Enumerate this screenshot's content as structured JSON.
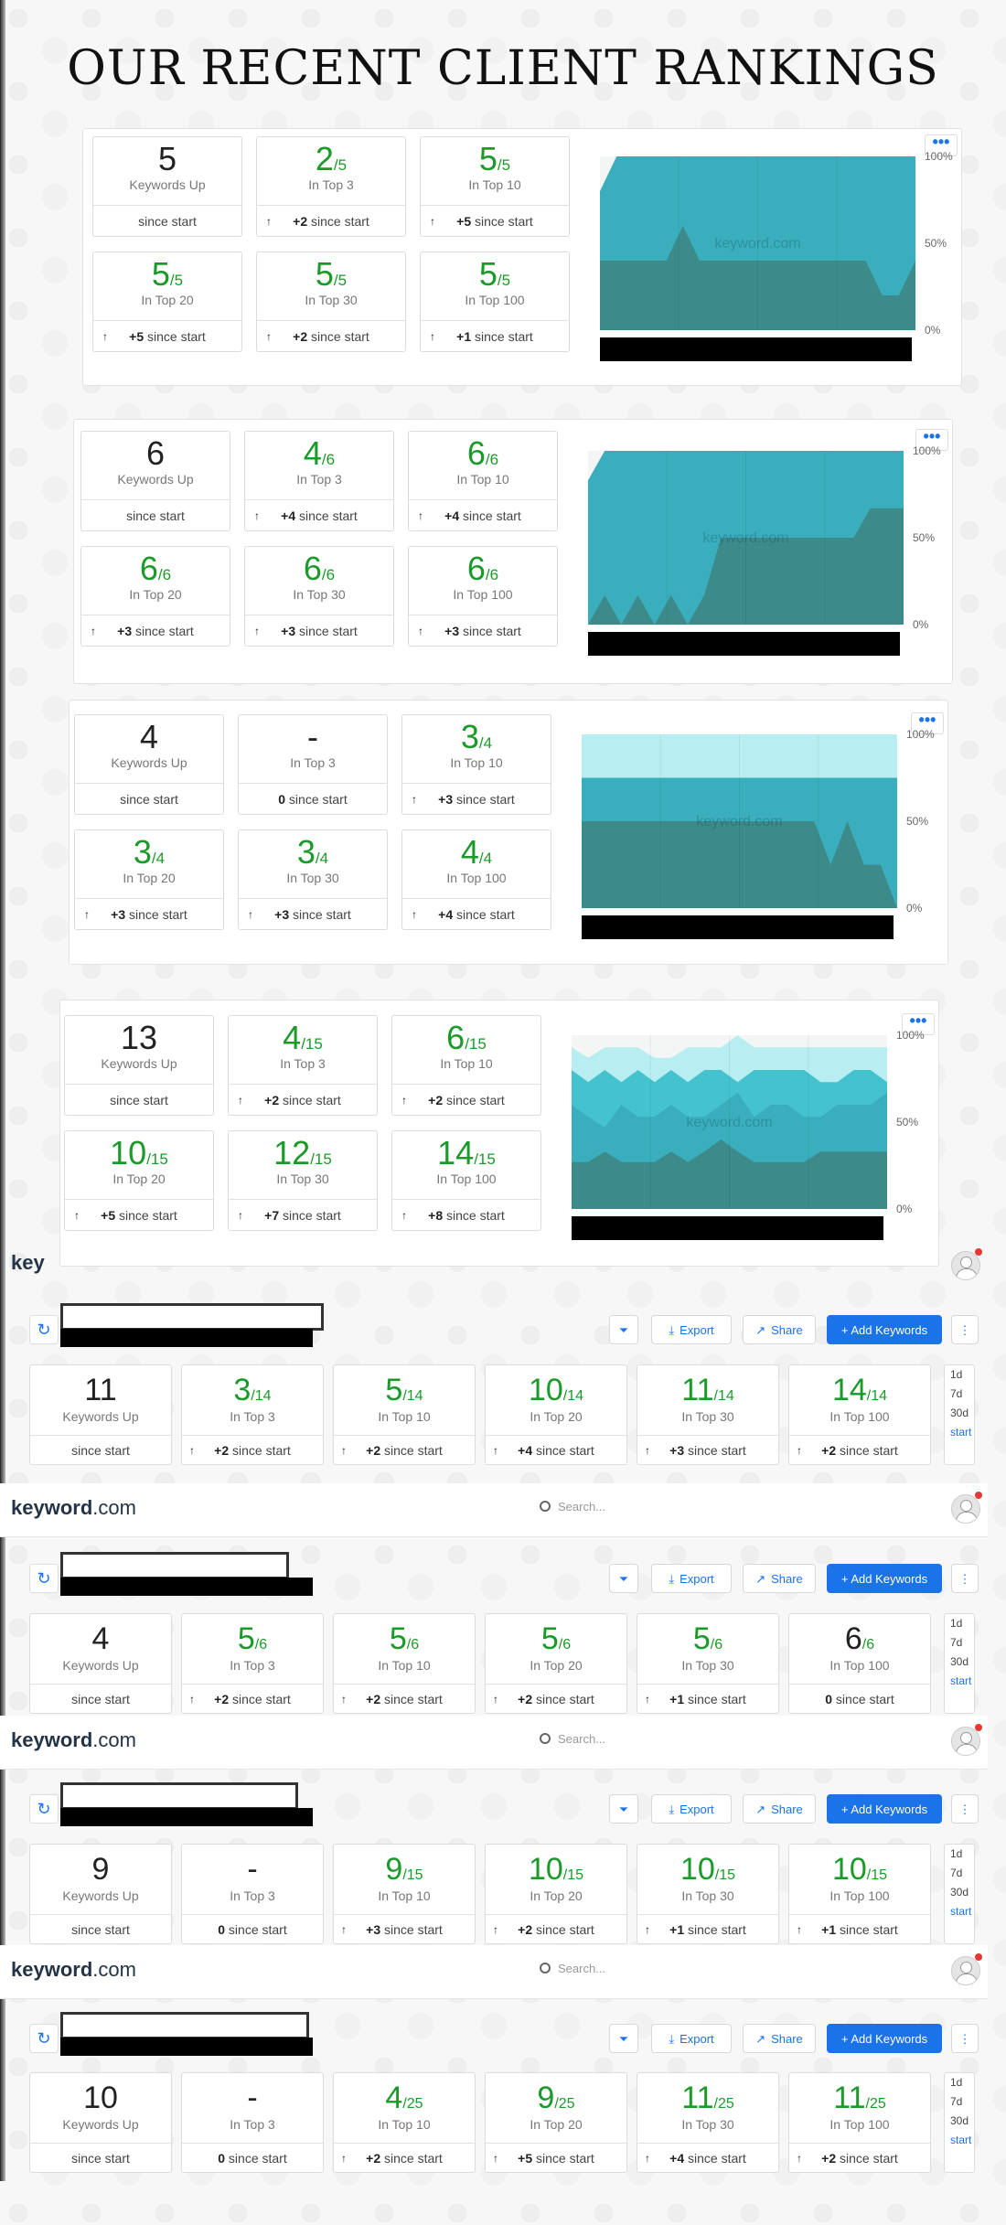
{
  "page_title": "OUR RECENT CLIENT RANKINGS",
  "watermark": "keyword.com",
  "menu_dots": "•••",
  "colors": {
    "green": "#1b9a2a",
    "chart_light": "#b8eef2",
    "chart_mid": "#44c3cf",
    "chart_teal": "#3aaebd",
    "chart_dark": "#3c8a8a",
    "blue": "#1a73e8"
  },
  "panels": [
    {
      "cards": [
        {
          "num": "5",
          "den": "",
          "green": false,
          "label": "Keywords Up",
          "arrow": false,
          "delta": "",
          "since": "since start"
        },
        {
          "num": "2",
          "den": "/5",
          "green": true,
          "label": "In Top 3",
          "arrow": true,
          "delta": "+2",
          "since": " since start"
        },
        {
          "num": "5",
          "den": "/5",
          "green": true,
          "label": "In Top 10",
          "arrow": true,
          "delta": "+5",
          "since": " since start"
        },
        {
          "num": "5",
          "den": "/5",
          "green": true,
          "label": "In Top 20",
          "arrow": true,
          "delta": "+5",
          "since": " since start"
        },
        {
          "num": "5",
          "den": "/5",
          "green": true,
          "label": "In Top 30",
          "arrow": true,
          "delta": "+2",
          "since": " since start"
        },
        {
          "num": "5",
          "den": "/5",
          "green": true,
          "label": "In Top 100",
          "arrow": true,
          "delta": "+1",
          "since": " since start"
        }
      ],
      "chart": {
        "type": "area",
        "y_ticks": [
          "100%",
          "50%",
          "0%"
        ],
        "layers": [
          {
            "color": "#3aaebd",
            "values": [
              80,
              100,
              100,
              100,
              100,
              100,
              100,
              100,
              100,
              100,
              100,
              100,
              100,
              100,
              100,
              100,
              100,
              100,
              100,
              100
            ]
          },
          {
            "color": "#3c8a8a",
            "values": [
              40,
              40,
              40,
              40,
              40,
              60,
              40,
              40,
              40,
              40,
              40,
              40,
              40,
              40,
              40,
              40,
              40,
              20,
              20,
              40
            ]
          }
        ]
      }
    },
    {
      "cards": [
        {
          "num": "6",
          "den": "",
          "green": false,
          "label": "Keywords Up",
          "arrow": false,
          "delta": "",
          "since": "since start"
        },
        {
          "num": "4",
          "den": "/6",
          "green": true,
          "label": "In Top 3",
          "arrow": true,
          "delta": "+4",
          "since": " since start"
        },
        {
          "num": "6",
          "den": "/6",
          "green": true,
          "label": "In Top 10",
          "arrow": true,
          "delta": "+4",
          "since": " since start"
        },
        {
          "num": "6",
          "den": "/6",
          "green": true,
          "label": "In Top 20",
          "arrow": true,
          "delta": "+3",
          "since": " since start"
        },
        {
          "num": "6",
          "den": "/6",
          "green": true,
          "label": "In Top 30",
          "arrow": true,
          "delta": "+3",
          "since": " since start"
        },
        {
          "num": "6",
          "den": "/6",
          "green": true,
          "label": "In Top 100",
          "arrow": true,
          "delta": "+3",
          "since": " since start"
        }
      ],
      "chart": {
        "type": "area",
        "y_ticks": [
          "100%",
          "50%",
          "0%"
        ],
        "layers": [
          {
            "color": "#3aaebd",
            "values": [
              83,
              100,
              100,
              100,
              100,
              100,
              100,
              100,
              100,
              100,
              100,
              100,
              100,
              100,
              100,
              100,
              100,
              100,
              100,
              100
            ]
          },
          {
            "color": "#3c8a8a",
            "values": [
              0,
              17,
              0,
              17,
              0,
              17,
              0,
              17,
              50,
              50,
              50,
              50,
              50,
              50,
              50,
              50,
              50,
              67,
              67,
              67
            ]
          }
        ]
      }
    },
    {
      "cards": [
        {
          "num": "4",
          "den": "",
          "green": false,
          "label": "Keywords Up",
          "arrow": false,
          "delta": "",
          "since": "since start"
        },
        {
          "num": "-",
          "den": "",
          "green": false,
          "label": "In Top 3",
          "arrow": false,
          "delta": "0",
          "since": " since start"
        },
        {
          "num": "3",
          "den": "/4",
          "green": true,
          "label": "In Top 10",
          "arrow": true,
          "delta": "+3",
          "since": " since start"
        },
        {
          "num": "3",
          "den": "/4",
          "green": true,
          "label": "In Top 20",
          "arrow": true,
          "delta": "+3",
          "since": " since start"
        },
        {
          "num": "3",
          "den": "/4",
          "green": true,
          "label": "In Top 30",
          "arrow": true,
          "delta": "+3",
          "since": " since start"
        },
        {
          "num": "4",
          "den": "/4",
          "green": true,
          "label": "In Top 100",
          "arrow": true,
          "delta": "+4",
          "since": " since start"
        }
      ],
      "chart": {
        "type": "area",
        "y_ticks": [
          "100%",
          "50%",
          "0%"
        ],
        "layers": [
          {
            "color": "#b8eef2",
            "values": [
              100,
              100,
              100,
              100,
              100,
              100,
              100,
              100,
              100,
              100,
              100,
              100,
              100,
              100,
              100,
              100,
              100,
              100,
              100,
              100
            ]
          },
          {
            "color": "#3aaebd",
            "values": [
              75,
              75,
              75,
              75,
              75,
              75,
              75,
              75,
              75,
              75,
              75,
              75,
              75,
              75,
              75,
              75,
              75,
              75,
              75,
              75
            ]
          },
          {
            "color": "#3c8a8a",
            "values": [
              50,
              50,
              50,
              50,
              50,
              50,
              50,
              50,
              50,
              50,
              50,
              50,
              50,
              50,
              50,
              25,
              50,
              25,
              25,
              0
            ]
          }
        ]
      }
    },
    {
      "cards": [
        {
          "num": "13",
          "den": "",
          "green": false,
          "label": "Keywords Up",
          "arrow": false,
          "delta": "",
          "since": "since start"
        },
        {
          "num": "4",
          "den": "/15",
          "green": true,
          "label": "In Top 3",
          "arrow": true,
          "delta": "+2",
          "since": " since start"
        },
        {
          "num": "6",
          "den": "/15",
          "green": true,
          "label": "In Top 10",
          "arrow": true,
          "delta": "+2",
          "since": " since start"
        },
        {
          "num": "10",
          "den": "/15",
          "green": true,
          "label": "In Top 20",
          "arrow": true,
          "delta": "+5",
          "since": " since start"
        },
        {
          "num": "12",
          "den": "/15",
          "green": true,
          "label": "In Top 30",
          "arrow": true,
          "delta": "+7",
          "since": " since start"
        },
        {
          "num": "14",
          "den": "/15",
          "green": true,
          "label": "In Top 100",
          "arrow": true,
          "delta": "+8",
          "since": " since start"
        }
      ],
      "chart": {
        "type": "area",
        "y_ticks": [
          "100%",
          "50%",
          "0%"
        ],
        "layers": [
          {
            "color": "#b8eef2",
            "values": [
              93,
              87,
              93,
              93,
              93,
              87,
              87,
              93,
              93,
              93,
              100,
              93,
              93,
              93,
              93,
              93,
              93,
              93,
              93,
              93
            ]
          },
          {
            "color": "#44c3cf",
            "values": [
              80,
              73,
              80,
              73,
              80,
              73,
              80,
              73,
              80,
              80,
              73,
              80,
              80,
              80,
              80,
              73,
              73,
              80,
              80,
              73
            ]
          },
          {
            "color": "#3aaebd",
            "values": [
              60,
              53,
              47,
              60,
              53,
              53,
              60,
              53,
              53,
              60,
              67,
              53,
              60,
              60,
              53,
              53,
              60,
              60,
              60,
              67
            ]
          },
          {
            "color": "#3c8a8a",
            "values": [
              27,
              27,
              33,
              27,
              27,
              27,
              33,
              27,
              33,
              40,
              33,
              27,
              27,
              27,
              27,
              33,
              33,
              33,
              33,
              33
            ]
          }
        ]
      }
    }
  ],
  "apps": [
    {
      "logo_text": "key",
      "logo_suffix": "",
      "search_placeholder": "",
      "toolbar": {
        "export": "Export",
        "share": "Share",
        "add": "+ Add Keywords"
      },
      "cards": [
        {
          "num": "11",
          "den": "",
          "green": false,
          "label": "Keywords Up",
          "arrow": false,
          "delta": "",
          "since": "since start"
        },
        {
          "num": "3",
          "den": "/14",
          "green": true,
          "label": "In Top 3",
          "arrow": true,
          "delta": "+2",
          "since": " since start"
        },
        {
          "num": "5",
          "den": "/14",
          "green": true,
          "label": "In Top 10",
          "arrow": true,
          "delta": "+2",
          "since": " since start"
        },
        {
          "num": "10",
          "den": "/14",
          "green": true,
          "label": "In Top 20",
          "arrow": true,
          "delta": "+4",
          "since": " since start"
        },
        {
          "num": "11",
          "den": "/14",
          "green": true,
          "label": "In Top 30",
          "arrow": true,
          "delta": "+3",
          "since": " since start"
        },
        {
          "num": "14",
          "den": "/14",
          "green": true,
          "label": "In Top 100",
          "arrow": true,
          "delta": "+2",
          "since": " since start"
        }
      ],
      "periods": [
        "1d",
        "7d",
        "30d",
        "start"
      ]
    },
    {
      "logo_text": "keyword",
      "logo_suffix": ".com",
      "search_placeholder": "Search...",
      "toolbar": {
        "export": "Export",
        "share": "Share",
        "add": "+ Add Keywords"
      },
      "cards": [
        {
          "num": "4",
          "den": "",
          "green": false,
          "label": "Keywords Up",
          "arrow": false,
          "delta": "",
          "since": "since start"
        },
        {
          "num": "5",
          "den": "/6",
          "green": true,
          "label": "In Top 3",
          "arrow": true,
          "delta": "+2",
          "since": " since start"
        },
        {
          "num": "5",
          "den": "/6",
          "green": true,
          "label": "In Top 10",
          "arrow": true,
          "delta": "+2",
          "since": " since start"
        },
        {
          "num": "5",
          "den": "/6",
          "green": true,
          "label": "In Top 20",
          "arrow": true,
          "delta": "+2",
          "since": " since start"
        },
        {
          "num": "5",
          "den": "/6",
          "green": true,
          "label": "In Top 30",
          "arrow": true,
          "delta": "+1",
          "since": " since start"
        },
        {
          "num": "6",
          "den": "/6",
          "green": false,
          "label": "In Top 100",
          "arrow": false,
          "delta": "0",
          "since": " since start"
        }
      ],
      "periods": [
        "1d",
        "7d",
        "30d",
        "start"
      ]
    },
    {
      "logo_text": "keyword",
      "logo_suffix": ".com",
      "search_placeholder": "Search...",
      "toolbar": {
        "export": "Export",
        "share": "Share",
        "add": "+ Add Keywords"
      },
      "cards": [
        {
          "num": "9",
          "den": "",
          "green": false,
          "label": "Keywords Up",
          "arrow": false,
          "delta": "",
          "since": "since start"
        },
        {
          "num": "-",
          "den": "",
          "green": false,
          "label": "In Top 3",
          "arrow": false,
          "delta": "0",
          "since": " since start"
        },
        {
          "num": "9",
          "den": "/15",
          "green": true,
          "label": "In Top 10",
          "arrow": true,
          "delta": "+3",
          "since": " since start"
        },
        {
          "num": "10",
          "den": "/15",
          "green": true,
          "label": "In Top 20",
          "arrow": true,
          "delta": "+2",
          "since": " since start"
        },
        {
          "num": "10",
          "den": "/15",
          "green": true,
          "label": "In Top 30",
          "arrow": true,
          "delta": "+1",
          "since": " since start"
        },
        {
          "num": "10",
          "den": "/15",
          "green": true,
          "label": "In Top 100",
          "arrow": true,
          "delta": "+1",
          "since": " since start"
        }
      ],
      "periods": [
        "1d",
        "7d",
        "30d",
        "start"
      ]
    },
    {
      "logo_text": "keyword",
      "logo_suffix": ".com",
      "search_placeholder": "Search...",
      "toolbar": {
        "export": "Export",
        "share": "Share",
        "add": "+ Add Keywords"
      },
      "cards": [
        {
          "num": "10",
          "den": "",
          "green": false,
          "label": "Keywords Up",
          "arrow": false,
          "delta": "",
          "since": "since start"
        },
        {
          "num": "-",
          "den": "",
          "green": false,
          "label": "In Top 3",
          "arrow": false,
          "delta": "0",
          "since": " since start"
        },
        {
          "num": "4",
          "den": "/25",
          "green": true,
          "label": "In Top 10",
          "arrow": true,
          "delta": "+2",
          "since": " since start"
        },
        {
          "num": "9",
          "den": "/25",
          "green": true,
          "label": "In Top 20",
          "arrow": true,
          "delta": "+5",
          "since": " since start"
        },
        {
          "num": "11",
          "den": "/25",
          "green": true,
          "label": "In Top 30",
          "arrow": true,
          "delta": "+4",
          "since": " since start"
        },
        {
          "num": "11",
          "den": "/25",
          "green": true,
          "label": "In Top 100",
          "arrow": true,
          "delta": "+2",
          "since": " since start"
        }
      ],
      "periods": [
        "1d",
        "7d",
        "30d",
        "start"
      ]
    }
  ]
}
